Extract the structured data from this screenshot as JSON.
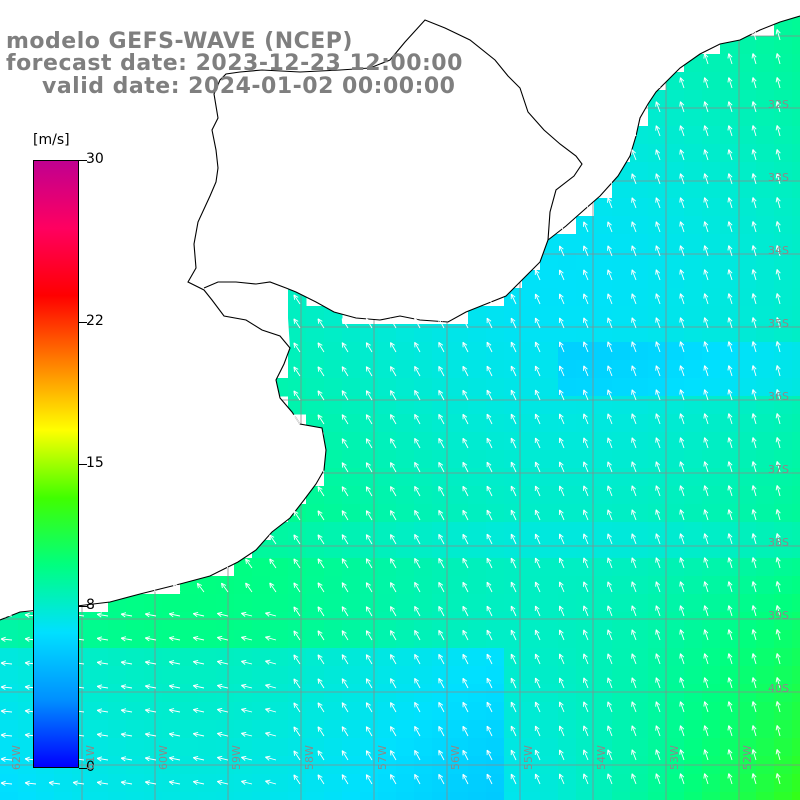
{
  "title": {
    "line1": "modelo GEFS-WAVE (NCEP)",
    "line2": "forecast date: 2023-12-23 12:00:00",
    "line3": "valid date: 2024-01-02 00:00:00"
  },
  "colorbar": {
    "unit": "[m/s]",
    "min": 0,
    "max": 30,
    "ticks": [
      {
        "value": 30,
        "label": "30"
      },
      {
        "value": 22,
        "label": "22"
      },
      {
        "value": 15,
        "label": "15"
      },
      {
        "value": 8,
        "label": "8"
      },
      {
        "value": 0,
        "label": "0"
      }
    ],
    "colors": [
      "#0000ff",
      "#0090ff",
      "#00e0ff",
      "#00ff80",
      "#40ff00",
      "#ffff00",
      "#ff8000",
      "#ff0000",
      "#ff0060",
      "#c00090"
    ]
  },
  "latitude_labels": [
    "32S",
    "33S",
    "34S",
    "35S",
    "36S",
    "37S",
    "38S",
    "39S",
    "40S"
  ],
  "longitude_labels": [
    "62W",
    "61W",
    "60W",
    "59W",
    "58W",
    "57W",
    "56W",
    "55W",
    "54W",
    "53W",
    "52W"
  ],
  "field": {
    "variable": "wind",
    "units": "m/s",
    "typical_speed_range": [
      6,
      12
    ],
    "prevailing_direction": "from south-southeast"
  },
  "colors": {
    "land": "#ffffff",
    "coastline": "#000000",
    "grid": "#8a8a8a",
    "arrows": "#ffffff",
    "title": "#7f7f7f"
  }
}
